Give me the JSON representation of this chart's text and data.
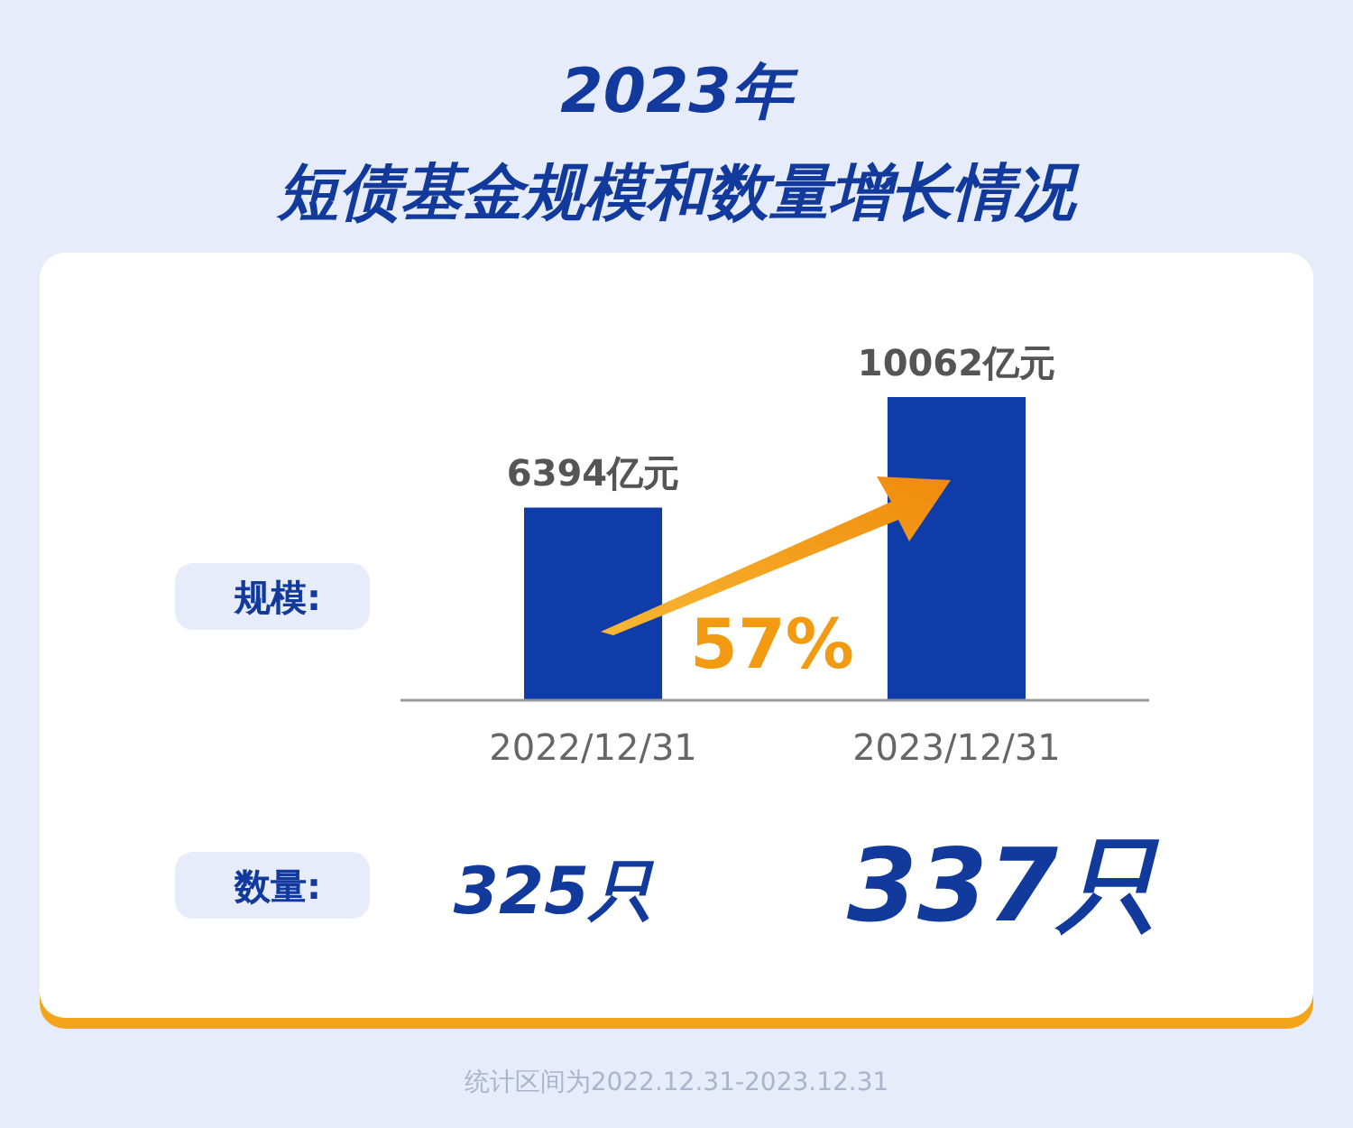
{
  "chart_data": {
    "type": "bar",
    "title": "2023年",
    "subtitle": "短债基金规模和数量增长情况",
    "categories": [
      "2022/12/31",
      "2023/12/31"
    ],
    "values": [
      6394,
      10062
    ],
    "color": "#0f3ca8",
    "value_labels": [
      "6394亿元",
      "10062亿元"
    ],
    "annotations": [
      "规模:",
      "数量:",
      "57%",
      "325只",
      "337只",
      "统计区间为2022.12.31-2023.12.31"
    ],
    "grid": false
  }
}
